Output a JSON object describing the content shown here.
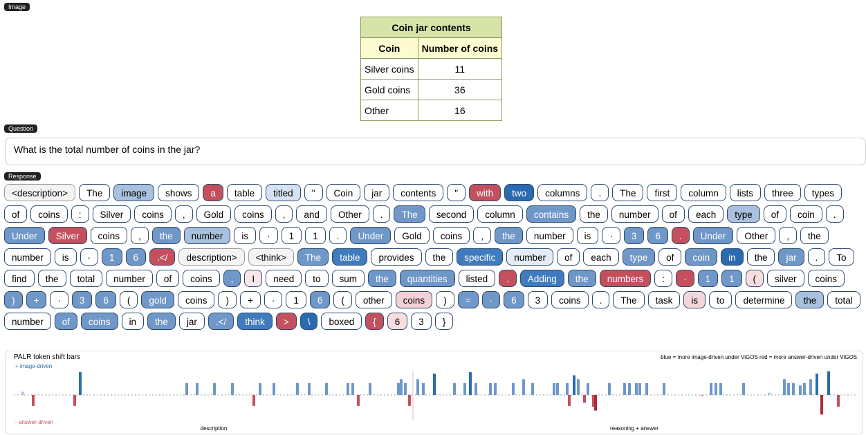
{
  "image_tag": "Image",
  "table": {
    "title": "Coin jar contents",
    "header": [
      "Coin",
      "Number of coins"
    ],
    "rows": [
      [
        "Silver coins",
        "11"
      ],
      [
        "Gold coins",
        "36"
      ],
      [
        "Other",
        "16"
      ]
    ]
  },
  "question_tag": "Question",
  "question": "What is the total number of coins in the jar?",
  "response_tag": "Response",
  "tokens": [
    {
      "text": "<description>",
      "color": "#f4f4f4"
    },
    {
      "text": "The",
      "color": "#ffffff"
    },
    {
      "text": "image",
      "color": "#a9c1de"
    },
    {
      "text": "shows",
      "color": "#ffffff"
    },
    {
      "text": "a",
      "color": "#c4505d"
    },
    {
      "text": "table",
      "color": "#ffffff"
    },
    {
      "text": "titled",
      "color": "#d6e2f1"
    },
    {
      "text": "\"",
      "color": "#ffffff"
    },
    {
      "text": "Coin",
      "color": "#ffffff"
    },
    {
      "text": "jar",
      "color": "#ffffff"
    },
    {
      "text": "contents",
      "color": "#ffffff"
    },
    {
      "text": "\"",
      "color": "#ffffff"
    },
    {
      "text": "with",
      "color": "#c4505d"
    },
    {
      "text": "two",
      "color": "#2a6bb0"
    },
    {
      "text": "columns",
      "color": "#ffffff"
    },
    {
      "text": ".",
      "color": "#ffffff"
    },
    {
      "text": "The",
      "color": "#ffffff"
    },
    {
      "text": "first",
      "color": "#ffffff"
    },
    {
      "text": "column",
      "color": "#ffffff"
    },
    {
      "text": "lists",
      "color": "#ffffff"
    },
    {
      "text": "three",
      "color": "#ffffff"
    },
    {
      "text": "types",
      "color": "#ffffff"
    },
    {
      "text": "of",
      "color": "#ffffff"
    },
    {
      "text": "coins",
      "color": "#ffffff"
    },
    {
      "text": ":",
      "color": "#ffffff"
    },
    {
      "text": "Silver",
      "color": "#ffffff"
    },
    {
      "text": "coins",
      "color": "#ffffff"
    },
    {
      "text": ",",
      "color": "#ffffff"
    },
    {
      "text": "Gold",
      "color": "#ffffff"
    },
    {
      "text": "coins",
      "color": "#ffffff"
    },
    {
      "text": ",",
      "color": "#ffffff"
    },
    {
      "text": "and",
      "color": "#ffffff"
    },
    {
      "text": "Other",
      "color": "#ffffff"
    },
    {
      "text": ".",
      "color": "#ffffff"
    },
    {
      "text": "The",
      "color": "#6f97c8"
    },
    {
      "text": "second",
      "color": "#ffffff"
    },
    {
      "text": "column",
      "color": "#ffffff"
    },
    {
      "text": "contains",
      "color": "#6f97c8"
    },
    {
      "text": "the",
      "color": "#ffffff"
    },
    {
      "text": "number",
      "color": "#ffffff"
    },
    {
      "text": "of",
      "color": "#ffffff"
    },
    {
      "text": "each",
      "color": "#ffffff"
    },
    {
      "text": "type",
      "color": "#a9c1de"
    },
    {
      "text": "of",
      "color": "#ffffff"
    },
    {
      "text": "coin",
      "color": "#ffffff"
    },
    {
      "text": ".",
      "color": "#ffffff"
    },
    {
      "text": "Under",
      "color": "#6f97c8"
    },
    {
      "text": "Silver",
      "color": "#c4505d"
    },
    {
      "text": "coins",
      "color": "#ffffff"
    },
    {
      "text": ",",
      "color": "#ffffff"
    },
    {
      "text": "the",
      "color": "#6f97c8"
    },
    {
      "text": "number",
      "color": "#a9c1de"
    },
    {
      "text": "is",
      "color": "#ffffff"
    },
    {
      "text": "·",
      "color": "#ffffff"
    },
    {
      "text": "1",
      "color": "#ffffff"
    },
    {
      "text": "1",
      "color": "#ffffff"
    },
    {
      "text": ".",
      "color": "#ffffff"
    },
    {
      "text": "Under",
      "color": "#6f97c8"
    },
    {
      "text": "Gold",
      "color": "#ffffff"
    },
    {
      "text": "coins",
      "color": "#ffffff"
    },
    {
      "text": ",",
      "color": "#ffffff"
    },
    {
      "text": "the",
      "color": "#6f97c8"
    },
    {
      "text": "number",
      "color": "#ffffff"
    },
    {
      "text": "is",
      "color": "#ffffff"
    },
    {
      "text": "·",
      "color": "#ffffff"
    },
    {
      "text": "3",
      "color": "#6f97c8"
    },
    {
      "text": "6",
      "color": "#6f97c8"
    },
    {
      "text": ".",
      "color": "#c4505d"
    },
    {
      "text": "Under",
      "color": "#6f97c8"
    },
    {
      "text": "Other",
      "color": "#ffffff"
    },
    {
      "text": ",",
      "color": "#ffffff"
    },
    {
      "text": "the",
      "color": "#ffffff"
    },
    {
      "text": "number",
      "color": "#ffffff"
    },
    {
      "text": "is",
      "color": "#ffffff"
    },
    {
      "text": "·",
      "color": "#ffffff"
    },
    {
      "text": "1",
      "color": "#6f97c8"
    },
    {
      "text": "6",
      "color": "#6f97c8"
    },
    {
      "text": ".</",
      "color": "#c4505d"
    },
    {
      "text": "description>",
      "color": "#f4f4f4"
    },
    {
      "text": "<think>",
      "color": "#f4f4f4"
    },
    {
      "text": "The",
      "color": "#6f97c8"
    },
    {
      "text": "table",
      "color": "#3f7bbd"
    },
    {
      "text": "provides",
      "color": "#ffffff"
    },
    {
      "text": "the",
      "color": "#ffffff"
    },
    {
      "text": "specific",
      "color": "#3f7bbd"
    },
    {
      "text": "number",
      "color": "#e4ecf6"
    },
    {
      "text": "of",
      "color": "#ffffff"
    },
    {
      "text": "each",
      "color": "#ffffff"
    },
    {
      "text": "type",
      "color": "#6f97c8"
    },
    {
      "text": "of",
      "color": "#ffffff"
    },
    {
      "text": "coin",
      "color": "#6f97c8"
    },
    {
      "text": "in",
      "color": "#2a6bb0"
    },
    {
      "text": "the",
      "color": "#ffffff"
    },
    {
      "text": "jar",
      "color": "#6f97c8"
    },
    {
      "text": ".",
      "color": "#ffffff"
    },
    {
      "text": "To",
      "color": "#ffffff"
    },
    {
      "text": "find",
      "color": "#ffffff"
    },
    {
      "text": "the",
      "color": "#ffffff"
    },
    {
      "text": "total",
      "color": "#ffffff"
    },
    {
      "text": "number",
      "color": "#ffffff"
    },
    {
      "text": "of",
      "color": "#ffffff"
    },
    {
      "text": "coins",
      "color": "#ffffff"
    },
    {
      "text": ",",
      "color": "#6f97c8"
    },
    {
      "text": "I",
      "color": "#f9e6e8"
    },
    {
      "text": "need",
      "color": "#ffffff"
    },
    {
      "text": "to",
      "color": "#ffffff"
    },
    {
      "text": "sum",
      "color": "#ffffff"
    },
    {
      "text": "the",
      "color": "#6f97c8"
    },
    {
      "text": "quantities",
      "color": "#6f97c8"
    },
    {
      "text": "listed",
      "color": "#ffffff"
    },
    {
      "text": ".",
      "color": "#c4505d"
    },
    {
      "text": "Adding",
      "color": "#3f7bbd"
    },
    {
      "text": "the",
      "color": "#6f97c8"
    },
    {
      "text": "numbers",
      "color": "#c4505d"
    },
    {
      "text": ":",
      "color": "#ffffff"
    },
    {
      "text": "·",
      "color": "#c4505d"
    },
    {
      "text": "1",
      "color": "#6f97c8"
    },
    {
      "text": "1",
      "color": "#6f97c8"
    },
    {
      "text": "(",
      "color": "#f6dde0"
    },
    {
      "text": "silver",
      "color": "#ffffff"
    },
    {
      "text": "coins",
      "color": "#ffffff"
    },
    {
      "text": ")",
      "color": "#6f97c8"
    },
    {
      "text": "+",
      "color": "#6f97c8"
    },
    {
      "text": "·",
      "color": "#ffffff"
    },
    {
      "text": "3",
      "color": "#6f97c8"
    },
    {
      "text": "6",
      "color": "#6f97c8"
    },
    {
      "text": "(",
      "color": "#ffffff"
    },
    {
      "text": "gold",
      "color": "#6f97c8"
    },
    {
      "text": "coins",
      "color": "#ffffff"
    },
    {
      "text": ")",
      "color": "#ffffff"
    },
    {
      "text": "+",
      "color": "#ffffff"
    },
    {
      "text": "·",
      "color": "#ffffff"
    },
    {
      "text": "1",
      "color": "#ffffff"
    },
    {
      "text": "6",
      "color": "#6f97c8"
    },
    {
      "text": "(",
      "color": "#ffffff"
    },
    {
      "text": "other",
      "color": "#ffffff"
    },
    {
      "text": "coins",
      "color": "#f3d0d5"
    },
    {
      "text": ")",
      "color": "#ffffff"
    },
    {
      "text": "=",
      "color": "#6f97c8"
    },
    {
      "text": "·",
      "color": "#6f97c8"
    },
    {
      "text": "6",
      "color": "#6f97c8"
    },
    {
      "text": "3",
      "color": "#ffffff"
    },
    {
      "text": "coins",
      "color": "#ffffff"
    },
    {
      "text": ".",
      "color": "#ffffff"
    },
    {
      "text": "The",
      "color": "#ffffff"
    },
    {
      "text": "task",
      "color": "#ffffff"
    },
    {
      "text": "is",
      "color": "#f3d6da"
    },
    {
      "text": "to",
      "color": "#ffffff"
    },
    {
      "text": "determine",
      "color": "#ffffff"
    },
    {
      "text": "the",
      "color": "#a9c1de"
    },
    {
      "text": "total",
      "color": "#ffffff"
    },
    {
      "text": "number",
      "color": "#ffffff"
    },
    {
      "text": "of",
      "color": "#6f97c8"
    },
    {
      "text": "coins",
      "color": "#6f97c8"
    },
    {
      "text": "in",
      "color": "#ffffff"
    },
    {
      "text": "the",
      "color": "#6f97c8"
    },
    {
      "text": "jar",
      "color": "#ffffff"
    },
    {
      "text": ".</",
      "color": "#6f97c8"
    },
    {
      "text": "think",
      "color": "#3f7bbd"
    },
    {
      "text": ">",
      "color": "#c4505d"
    },
    {
      "text": "\\",
      "color": "#2a6bb0"
    },
    {
      "text": "boxed",
      "color": "#ffffff"
    },
    {
      "text": "{",
      "color": "#c4505d"
    },
    {
      "text": "6",
      "color": "#f6dde0"
    },
    {
      "text": "3",
      "color": "#ffffff"
    },
    {
      "text": "}",
      "color": "#ffffff"
    }
  ],
  "chart_data": {
    "type": "bar",
    "title": "PALR token shift bars",
    "legend": "blue = more image-driven under ViGOS   red = more answer-driven under ViGOS",
    "positive_label": "+ image-driven",
    "negative_label": "- answer-driven",
    "segments": [
      "description",
      "reasoning + answer"
    ],
    "positive_color": "#6f97c8",
    "strong_positive_color": "#2a6bb0",
    "negative_color": "#c4505d",
    "strong_negative_color": "#b02a3a",
    "xlim": [
      0,
      1220
    ],
    "ylim": [
      -30,
      30
    ],
    "x": [
      13,
      28,
      88,
      96,
      250,
      265,
      290,
      316,
      347,
      356,
      376,
      410,
      427,
      452,
      483,
      490,
      498,
      515,
      556,
      560,
      566,
      572,
      584,
      592,
      608,
      637,
      652,
      660,
      668,
      689,
      696,
      722,
      737,
      750,
      781,
      786,
      800,
      803,
      810,
      816,
      825,
      830,
      838,
      841,
      861,
      883,
      890,
      900,
      905,
      915,
      940,
      995,
      1008,
      1015,
      1022,
      1055,
      1092,
      1114,
      1120,
      1127,
      1137,
      1143,
      1152,
      1161,
      1168,
      1178,
      1192
    ],
    "values": [
      4,
      -14,
      -14,
      29,
      15,
      15,
      15,
      15,
      -14,
      15,
      15,
      15,
      15,
      15,
      15,
      15,
      -14,
      15,
      15,
      20,
      15,
      -14,
      20,
      15,
      27,
      15,
      15,
      29,
      15,
      15,
      15,
      15,
      20,
      15,
      15,
      15,
      15,
      -14,
      25,
      20,
      -10,
      15,
      -15,
      -20,
      15,
      15,
      15,
      15,
      15,
      15,
      15,
      -2,
      15,
      15,
      15,
      15,
      3,
      20,
      15,
      15,
      12,
      15,
      20,
      27,
      -25,
      30,
      -15
    ]
  }
}
